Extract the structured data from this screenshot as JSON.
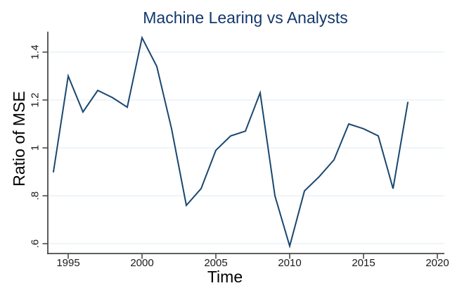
{
  "chart_data": {
    "type": "line",
    "title": "Machine Learing vs Analysts",
    "xlabel": "Time",
    "ylabel": "Ratio of MSE",
    "x": [
      1994,
      1995,
      1996,
      1997,
      1998,
      1999,
      2000,
      2001,
      2002,
      2003,
      2004,
      2005,
      2006,
      2007,
      2008,
      2009,
      2010,
      2011,
      2012,
      2013,
      2014,
      2015,
      2016,
      2017,
      2018
    ],
    "values": [
      0.9,
      1.3,
      1.15,
      1.24,
      1.21,
      1.17,
      1.46,
      1.34,
      1.08,
      0.76,
      0.83,
      0.99,
      1.05,
      1.07,
      1.23,
      0.8,
      0.59,
      0.82,
      0.88,
      0.95,
      1.1,
      1.08,
      1.05,
      0.83,
      1.19
    ],
    "xticks": [
      1995,
      2000,
      2005,
      2010,
      2015,
      2020
    ],
    "xtick_labels": [
      "1995",
      "2000",
      "2005",
      "2010",
      "2015",
      "2020"
    ],
    "yticks": [
      0.6,
      0.8,
      1.0,
      1.2,
      1.4
    ],
    "ytick_labels": [
      ".6",
      ".8",
      "1",
      "1.2",
      "1.4"
    ],
    "xlim": [
      1993.6,
      2020.5
    ],
    "ylim": [
      0.56,
      1.485
    ],
    "grid": "horizontal",
    "legend": "none",
    "colors": {
      "line": "#1a476f",
      "title": "#13386b",
      "grid": "#e4eff5",
      "axis": "#4a4a4a",
      "tick_text": "#1a1a1a",
      "background": "#ffffff"
    }
  }
}
